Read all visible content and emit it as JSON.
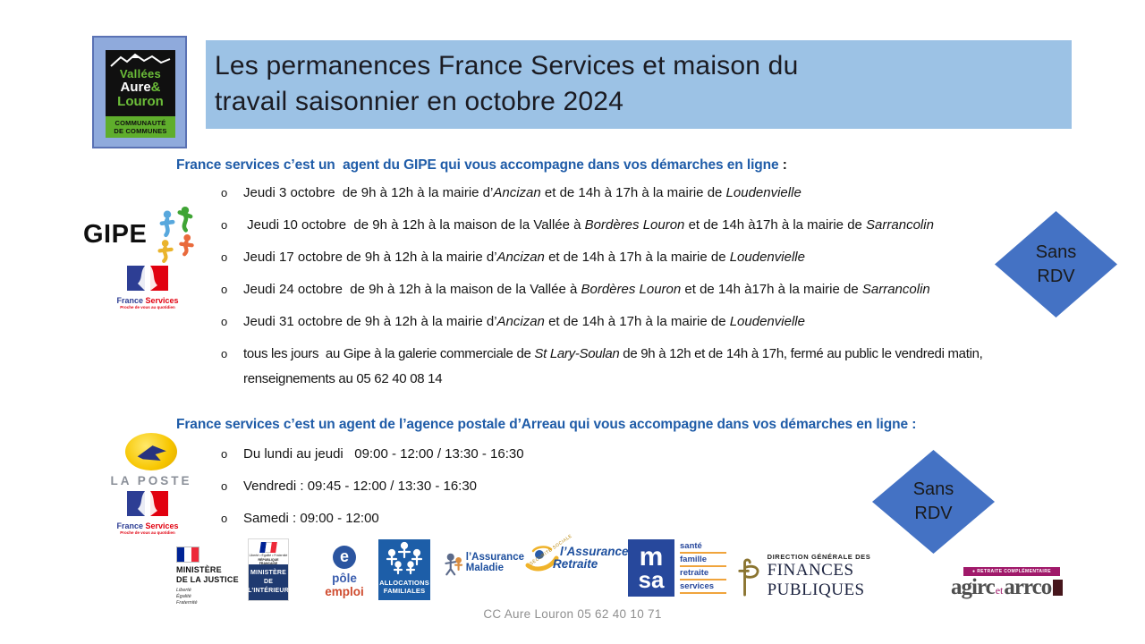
{
  "header": {
    "title_line1": "Les permanences France Services et maison du",
    "title_line2": "travail saisonnier en octobre 2024"
  },
  "org_logo": {
    "name_line1": "Vallées",
    "name_line2": "Aure",
    "amp": "&",
    "name_line3": "Louron",
    "band_line1": "COMMUNAUTÉ",
    "band_line2": "DE COMMUNES"
  },
  "section1": {
    "heading": "France services c’est un  agent du GIPE qui vous accompagne dans vos démarches en ligne",
    "heading_colon": " :",
    "bullet_marker": "o",
    "bullets": [
      [
        {
          "t": "Jeudi 3 octobre  de 9h à 12h à la mairie d’"
        },
        {
          "t": "Ancizan",
          "i": true
        },
        {
          "t": " et de 14h à 17h à la mairie de "
        },
        {
          "t": "Loudenvielle",
          "i": true
        }
      ],
      [
        {
          "t": " Jeudi 10 octobre  de 9h à 12h à la maison de la Vallée à "
        },
        {
          "t": "Bordères Louron",
          "i": true
        },
        {
          "t": " et de 14h à17h à la mairie de "
        },
        {
          "t": "Sarrancolin",
          "i": true
        }
      ],
      [
        {
          "t": "Jeudi 17 octobre de 9h à 12h à la mairie d’"
        },
        {
          "t": "Ancizan",
          "i": true
        },
        {
          "t": " et de 14h à 17h à la mairie de "
        },
        {
          "t": "Loudenvielle",
          "i": true
        }
      ],
      [
        {
          "t": "Jeudi 24 octobre  de 9h à 12h à la maison de la Vallée à "
        },
        {
          "t": "Bordères Louron",
          "i": true
        },
        {
          "t": " et de 14h à17h à la mairie de "
        },
        {
          "t": "Sarrancolin",
          "i": true
        }
      ],
      [
        {
          "t": "Jeudi 31 octobre de 9h à 12h à la mairie d’"
        },
        {
          "t": "Ancizan",
          "i": true
        },
        {
          "t": " et de 14h à 17h à la mairie de "
        },
        {
          "t": "Loudenvielle",
          "i": true
        }
      ],
      [
        {
          "t": "tous les jours  au Gipe à la galerie commerciale de "
        },
        {
          "t": "St Lary-Soulan",
          "i": true
        },
        {
          "t": " de 9h à 12h et de 14h à 17h, fermé au public le vendredi matin, renseignements au 05 62 40 08 14"
        }
      ]
    ]
  },
  "section2": {
    "heading": "France services c’est un agent de l’agence postale d’Arreau qui vous accompagne dans vos démarches en ligne :",
    "bullet_marker": "o",
    "bullets": [
      "Du lundi au jeudi   09:00 - 12:00 / 13:30 - 16:30",
      "Vendredi : 09:45 - 12:00 / 13:30 - 16:30",
      "Samedi : 09:00 - 12:00"
    ]
  },
  "badge": {
    "line1": "Sans",
    "line2": "RDV"
  },
  "logos": {
    "gipe": {
      "text": "GIPE"
    },
    "france_services": {
      "word1": "France",
      "word2": "Services",
      "tagline": "Proche de vous au quotidien"
    },
    "la_poste": {
      "text": "LA POSTE"
    },
    "justice": {
      "line1": "MINISTÈRE",
      "line2": "DE LA JUSTICE",
      "motto1": "Liberté",
      "motto2": "Égalité",
      "motto3": "Fraternité"
    },
    "interieur": {
      "motto": "Liberté • Égalité • Fraternité",
      "republique": "RÉPUBLIQUE FRANÇAISE",
      "line1": "MINISTÈRE",
      "line2": "DE",
      "line3": "L’INTÉRIEUR"
    },
    "pole_emploi": {
      "e": "e",
      "word1": "pôle",
      "word2": "emploi"
    },
    "caf": {
      "line1": "ALLOCATIONS",
      "line2": "FAMILIALES"
    },
    "assurance_maladie": {
      "line1": "l’Assurance",
      "line2": "Maladie"
    },
    "assurance_retraite": {
      "arc": "SÉCURITÉ SOCIALE",
      "line1": "l’Assurance",
      "line2": "Retraite"
    },
    "msa": {
      "m": "m",
      "sa": "sa",
      "word1": "santé",
      "word2": "famille",
      "word3": "retraite",
      "word4": "services"
    },
    "dgfip": {
      "line1": "DIRECTION GÉNÉRALE DES",
      "line2": "FINANCES PUBLIQUES"
    },
    "agirc_arrco": {
      "banner": "● RETRAITE COMPLÉMENTAIRE",
      "word1": "agirc",
      "et": "et",
      "word2": "arrco"
    }
  },
  "footer": {
    "text": "CC Aure Louron 05 62 40 10 71"
  },
  "colors": {
    "banner": "#9CC2E5",
    "diamond": "#4472C4",
    "heading_blue": "#1F5CA8",
    "logo_square": "#8FAADC"
  }
}
